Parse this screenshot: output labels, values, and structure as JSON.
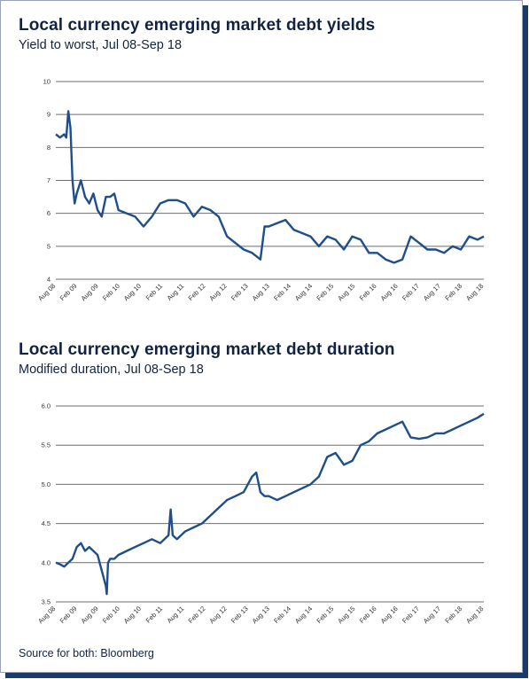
{
  "source": "Source for both: Bloomberg",
  "colors": {
    "line": "#1f4e8a",
    "grid": "#6e6e6e",
    "frame_shadow": "#1a3a6b"
  },
  "chart_data": [
    {
      "type": "line",
      "title": "Local currency emerging market debt yields",
      "subtitle": "Yield to worst, Jul 08-Sep 18",
      "xlabel": "",
      "ylabel": "",
      "ylim": [
        4,
        10
      ],
      "yticks": [
        "10",
        "9",
        "8",
        "7",
        "6",
        "5",
        "4"
      ],
      "xticks": [
        "Aug 08",
        "Feb 09",
        "Aug 09",
        "Feb 10",
        "Aug 10",
        "Feb 11",
        "Aug 11",
        "Feb 12",
        "Aug 12",
        "Feb 13",
        "Aug 13",
        "Feb 14",
        "Aug 14",
        "Feb 15",
        "Aug 15",
        "Feb 16",
        "Aug 16",
        "Feb 17",
        "Aug 17",
        "Feb 18",
        "Aug 18"
      ],
      "grid": true,
      "series": [
        {
          "x": [
            2008.5,
            2008.6,
            2008.7,
            2008.75,
            2008.8,
            2008.85,
            2008.9,
            2008.95,
            2009.0,
            2009.1,
            2009.2,
            2009.3,
            2009.4,
            2009.5,
            2009.6,
            2009.7,
            2009.8,
            2009.9,
            2010.0,
            2010.2,
            2010.4,
            2010.6,
            2010.8,
            2011.0,
            2011.2,
            2011.4,
            2011.6,
            2011.8,
            2012.0,
            2012.2,
            2012.4,
            2012.6,
            2012.8,
            2013.0,
            2013.2,
            2013.4,
            2013.5,
            2013.6,
            2013.8,
            2014.0,
            2014.2,
            2014.4,
            2014.6,
            2014.8,
            2015.0,
            2015.2,
            2015.4,
            2015.6,
            2015.8,
            2016.0,
            2016.2,
            2016.4,
            2016.6,
            2016.8,
            2017.0,
            2017.2,
            2017.4,
            2017.6,
            2017.8,
            2018.0,
            2018.2,
            2018.4,
            2018.6,
            2018.75
          ],
          "values": [
            8.4,
            8.3,
            8.4,
            8.3,
            9.1,
            8.6,
            7.0,
            6.3,
            6.6,
            7.0,
            6.5,
            6.3,
            6.6,
            6.1,
            5.9,
            6.5,
            6.5,
            6.6,
            6.1,
            6.0,
            5.9,
            5.6,
            5.9,
            6.3,
            6.4,
            6.4,
            6.3,
            5.9,
            6.2,
            6.1,
            5.9,
            5.3,
            5.1,
            4.9,
            4.8,
            4.6,
            5.6,
            5.6,
            5.7,
            5.8,
            5.5,
            5.4,
            5.3,
            5.0,
            5.3,
            5.2,
            4.9,
            5.3,
            5.2,
            4.8,
            4.8,
            4.6,
            4.5,
            4.6,
            5.3,
            5.1,
            4.9,
            4.9,
            4.8,
            5.0,
            4.9,
            5.3,
            5.2,
            5.3
          ]
        }
      ]
    },
    {
      "type": "line",
      "title": "Local currency emerging market debt duration",
      "subtitle": "Modified duration, Jul 08-Sep 18",
      "xlabel": "",
      "ylabel": "",
      "ylim": [
        3.5,
        6.0
      ],
      "yticks": [
        "6.0",
        "5.5",
        "5.0",
        "4.5",
        "4.0",
        "3.5"
      ],
      "xticks": [
        "Aug 08",
        "Feb 09",
        "Aug 09",
        "Feb 10",
        "Aug 10",
        "Feb 11",
        "Aug 11",
        "Feb 12",
        "Aug 12",
        "Feb 13",
        "Aug 13",
        "Feb 14",
        "Aug 14",
        "Feb 15",
        "Aug 15",
        "Feb 16",
        "Aug 16",
        "Feb 17",
        "Aug 17",
        "Feb 18",
        "Aug 18"
      ],
      "grid": true,
      "series": [
        {
          "x": [
            2008.5,
            2008.6,
            2008.7,
            2008.8,
            2008.9,
            2009.0,
            2009.1,
            2009.2,
            2009.3,
            2009.5,
            2009.6,
            2009.7,
            2009.72,
            2009.75,
            2009.8,
            2009.9,
            2010.0,
            2010.2,
            2010.4,
            2010.6,
            2010.8,
            2011.0,
            2011.2,
            2011.25,
            2011.3,
            2011.4,
            2011.6,
            2011.8,
            2012.0,
            2012.2,
            2012.4,
            2012.6,
            2012.8,
            2013.0,
            2013.2,
            2013.3,
            2013.4,
            2013.5,
            2013.6,
            2013.8,
            2014.0,
            2014.2,
            2014.4,
            2014.6,
            2014.8,
            2015.0,
            2015.2,
            2015.4,
            2015.6,
            2015.8,
            2016.0,
            2016.2,
            2016.4,
            2016.6,
            2016.8,
            2017.0,
            2017.2,
            2017.4,
            2017.6,
            2017.8,
            2018.0,
            2018.2,
            2018.4,
            2018.6,
            2018.75
          ],
          "values": [
            4.0,
            3.98,
            3.95,
            4.0,
            4.05,
            4.2,
            4.25,
            4.15,
            4.2,
            4.1,
            3.9,
            3.7,
            3.6,
            4.0,
            4.05,
            4.05,
            4.1,
            4.15,
            4.2,
            4.25,
            4.3,
            4.25,
            4.35,
            4.68,
            4.35,
            4.3,
            4.4,
            4.45,
            4.5,
            4.6,
            4.7,
            4.8,
            4.85,
            4.9,
            5.1,
            5.15,
            4.9,
            4.85,
            4.85,
            4.8,
            4.85,
            4.9,
            4.95,
            5.0,
            5.1,
            5.35,
            5.4,
            5.25,
            5.3,
            5.5,
            5.55,
            5.65,
            5.7,
            5.75,
            5.8,
            5.6,
            5.58,
            5.6,
            5.65,
            5.65,
            5.7,
            5.75,
            5.8,
            5.85,
            5.9
          ]
        }
      ]
    }
  ]
}
